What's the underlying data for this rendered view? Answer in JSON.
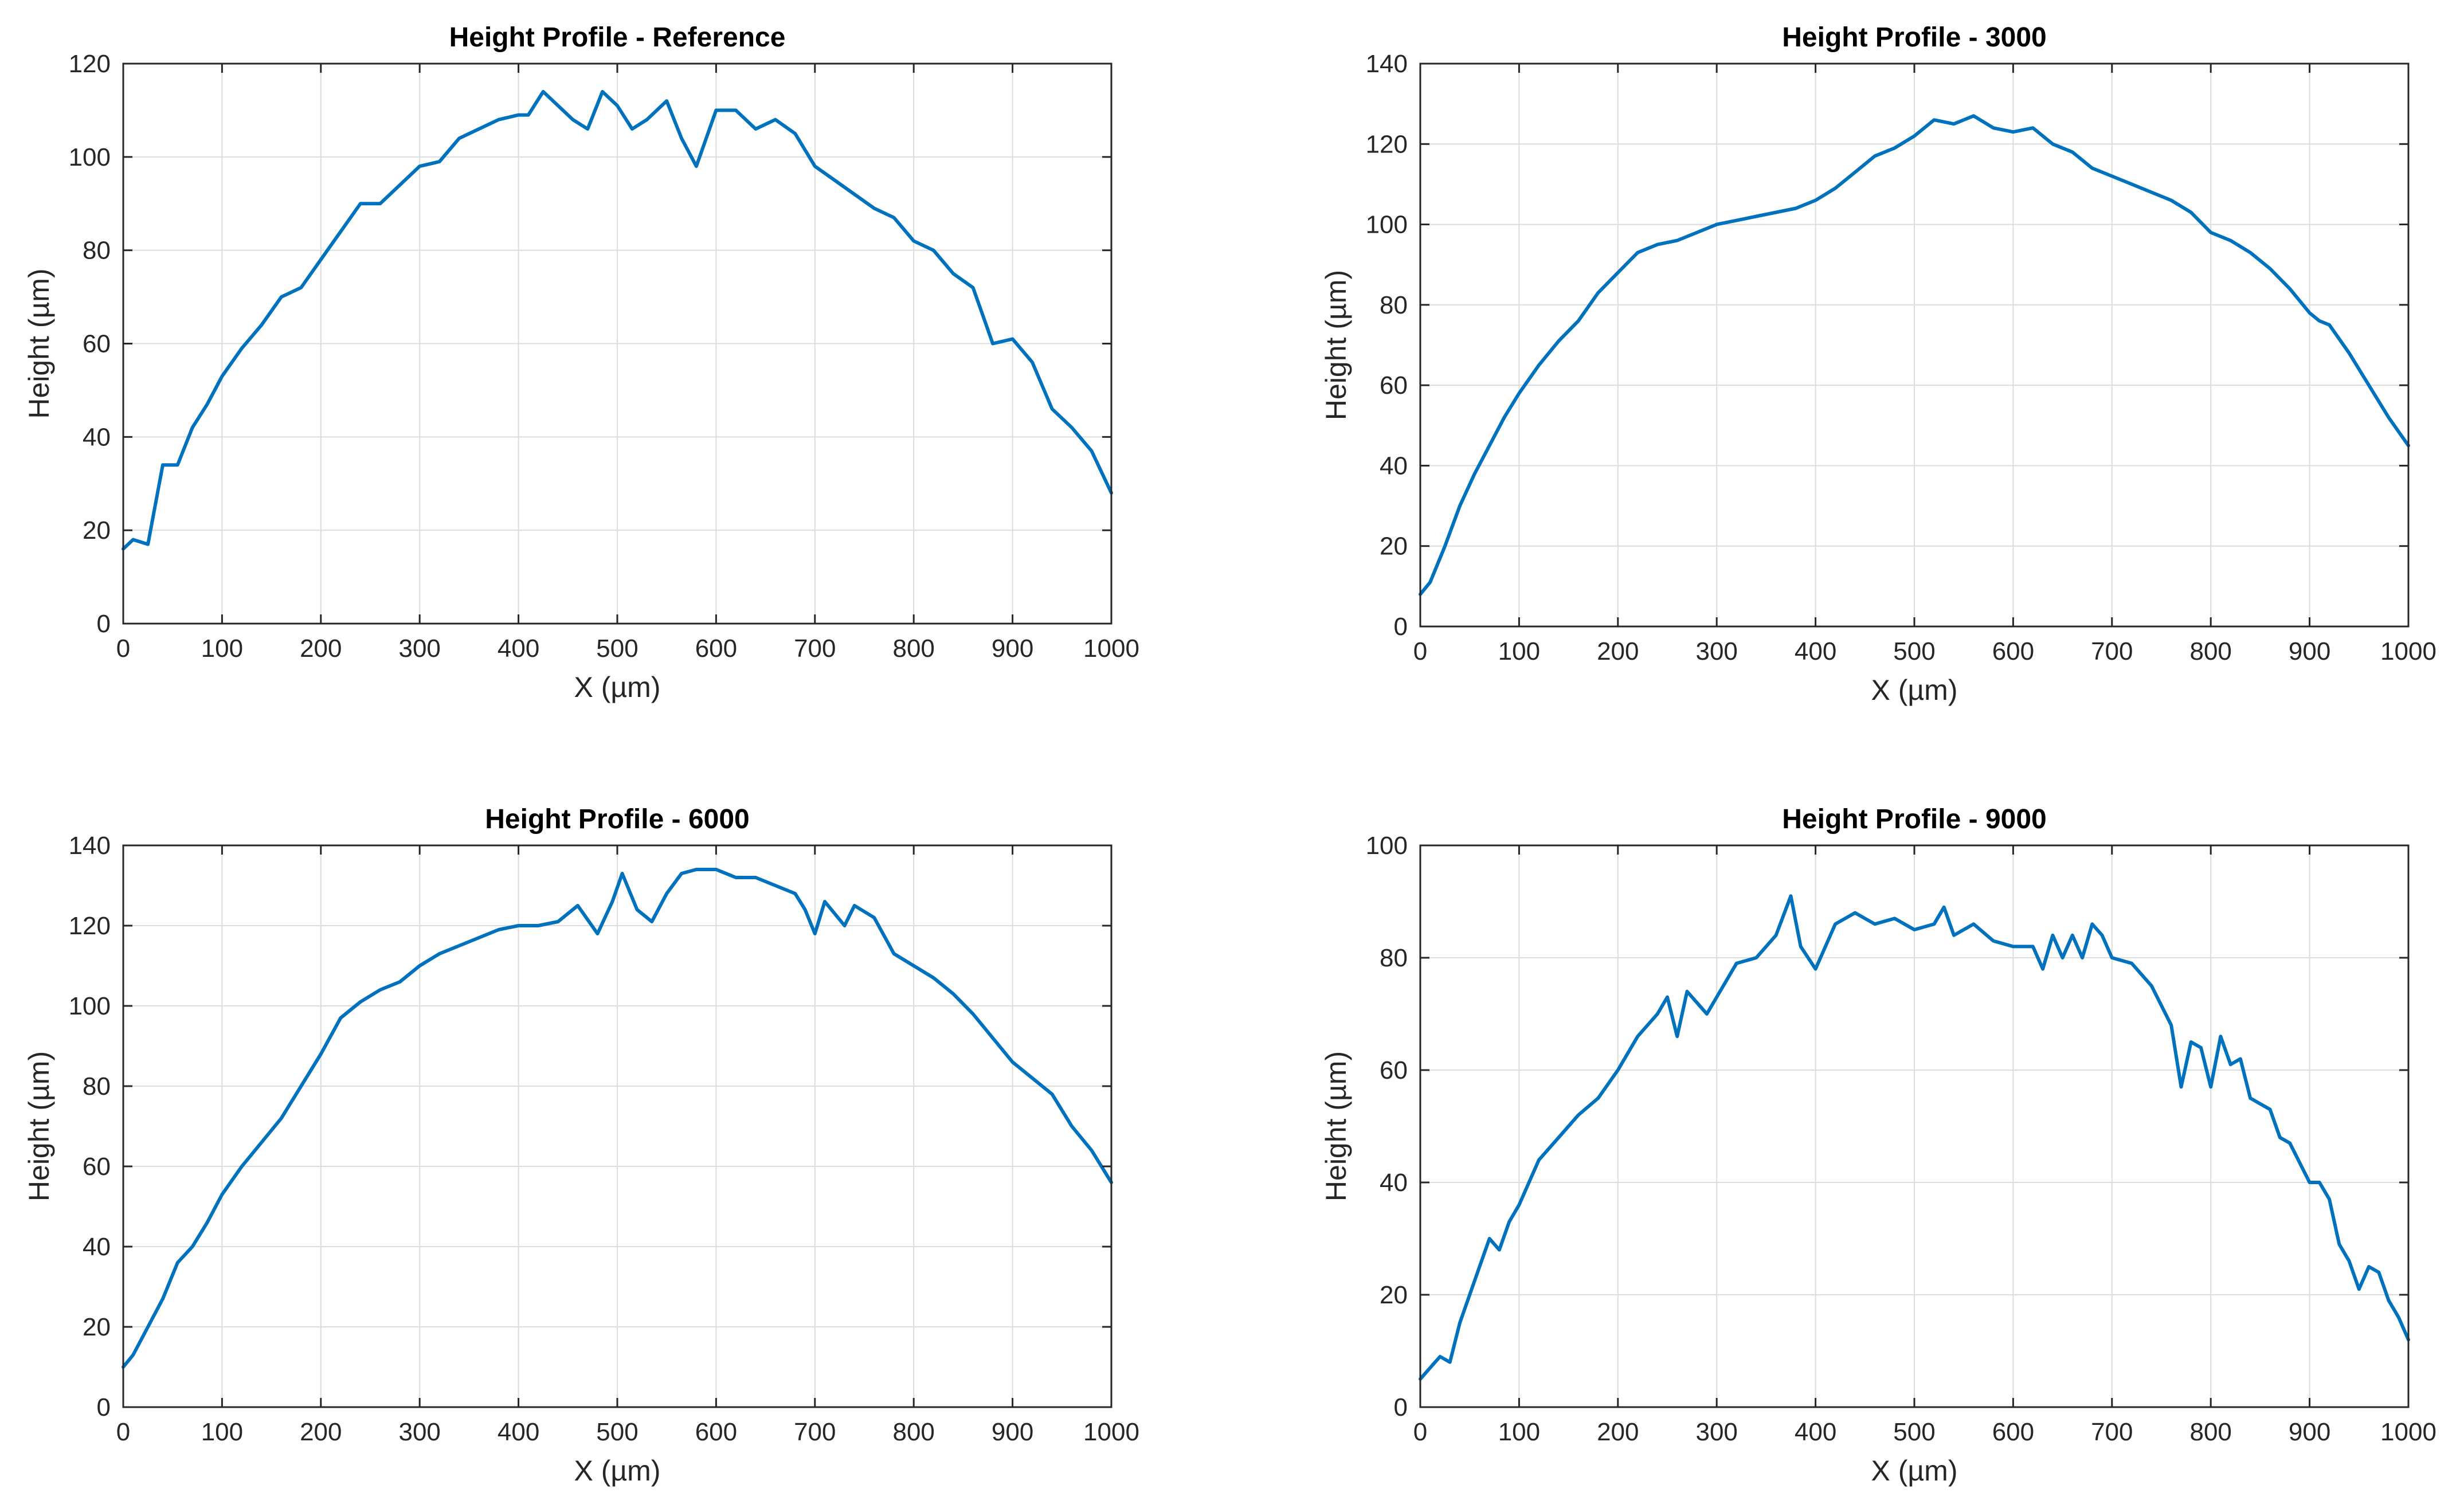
{
  "colors": {
    "line": "#0072BD",
    "grid": "#DCDCDC",
    "axis": "#262626",
    "background": "#FFFFFF"
  },
  "chart_data": [
    {
      "type": "line",
      "title": "Height Profile - Reference",
      "xlabel": "X (µm)",
      "ylabel": "Height (µm)",
      "xlim": [
        0,
        1000
      ],
      "ylim": [
        0,
        120
      ],
      "xticks": [
        0,
        100,
        200,
        300,
        400,
        500,
        600,
        700,
        800,
        900,
        1000
      ],
      "yticks": [
        0,
        20,
        40,
        60,
        80,
        100,
        120
      ],
      "xtick_labels": [
        "0",
        "100",
        "200",
        "300",
        "400",
        "500",
        "600",
        "700",
        "800",
        "900",
        "1000"
      ],
      "ytick_labels": [
        "0",
        "20",
        "40",
        "60",
        "80",
        "100",
        "120"
      ],
      "grid": true,
      "series": [
        {
          "name": "Reference",
          "x": [
            0,
            10,
            25,
            40,
            55,
            70,
            85,
            100,
            120,
            140,
            160,
            180,
            200,
            220,
            240,
            260,
            280,
            300,
            320,
            340,
            360,
            380,
            400,
            410,
            425,
            440,
            455,
            470,
            485,
            500,
            515,
            530,
            550,
            565,
            580,
            600,
            620,
            640,
            660,
            680,
            700,
            720,
            740,
            760,
            780,
            800,
            820,
            840,
            860,
            870,
            880,
            900,
            920,
            940,
            960,
            980,
            1000
          ],
          "y": [
            16,
            18,
            17,
            34,
            34,
            42,
            47,
            53,
            59,
            64,
            70,
            72,
            78,
            84,
            90,
            90,
            94,
            98,
            99,
            104,
            106,
            108,
            109,
            109,
            114,
            111,
            108,
            106,
            114,
            111,
            106,
            108,
            112,
            104,
            98,
            110,
            110,
            106,
            108,
            105,
            98,
            95,
            92,
            89,
            87,
            82,
            80,
            75,
            72,
            66,
            60,
            61,
            56,
            46,
            42,
            37,
            28
          ]
        }
      ]
    },
    {
      "type": "line",
      "title": "Height Profile - 3000",
      "xlabel": "X (µm)",
      "ylabel": "Height (µm)",
      "xlim": [
        0,
        1000
      ],
      "ylim": [
        0,
        140
      ],
      "xticks": [
        0,
        100,
        200,
        300,
        400,
        500,
        600,
        700,
        800,
        900,
        1000
      ],
      "yticks": [
        0,
        20,
        40,
        60,
        80,
        100,
        120,
        140
      ],
      "xtick_labels": [
        "0",
        "100",
        "200",
        "300",
        "400",
        "500",
        "600",
        "700",
        "800",
        "900",
        "1000"
      ],
      "ytick_labels": [
        "0",
        "20",
        "40",
        "60",
        "80",
        "100",
        "120",
        "140"
      ],
      "grid": true,
      "series": [
        {
          "name": "3000",
          "x": [
            0,
            10,
            25,
            40,
            55,
            70,
            85,
            100,
            120,
            140,
            160,
            180,
            200,
            220,
            240,
            260,
            280,
            300,
            320,
            340,
            360,
            380,
            400,
            420,
            440,
            460,
            480,
            500,
            520,
            540,
            560,
            580,
            600,
            620,
            640,
            660,
            680,
            700,
            720,
            740,
            760,
            780,
            800,
            820,
            840,
            860,
            880,
            900,
            910,
            920,
            940,
            960,
            980,
            1000
          ],
          "y": [
            8,
            11,
            20,
            30,
            38,
            45,
            52,
            58,
            65,
            71,
            76,
            83,
            88,
            93,
            95,
            96,
            98,
            100,
            101,
            102,
            103,
            104,
            106,
            109,
            113,
            117,
            119,
            122,
            126,
            125,
            127,
            124,
            123,
            124,
            120,
            118,
            114,
            112,
            110,
            108,
            106,
            103,
            98,
            96,
            93,
            89,
            84,
            78,
            76,
            75,
            68,
            60,
            52,
            45
          ]
        }
      ]
    },
    {
      "type": "line",
      "title": "Height Profile - 6000",
      "xlabel": "X (µm)",
      "ylabel": "Height (µm)",
      "xlim": [
        0,
        1000
      ],
      "ylim": [
        0,
        140
      ],
      "xticks": [
        0,
        100,
        200,
        300,
        400,
        500,
        600,
        700,
        800,
        900,
        1000
      ],
      "yticks": [
        0,
        20,
        40,
        60,
        80,
        100,
        120,
        140
      ],
      "xtick_labels": [
        "0",
        "100",
        "200",
        "300",
        "400",
        "500",
        "600",
        "700",
        "800",
        "900",
        "1000"
      ],
      "ytick_labels": [
        "0",
        "20",
        "40",
        "60",
        "80",
        "100",
        "120",
        "140"
      ],
      "grid": true,
      "series": [
        {
          "name": "6000",
          "x": [
            0,
            10,
            25,
            40,
            55,
            70,
            85,
            100,
            120,
            140,
            160,
            180,
            200,
            220,
            240,
            260,
            280,
            300,
            320,
            340,
            360,
            380,
            400,
            420,
            440,
            460,
            480,
            495,
            505,
            520,
            535,
            550,
            565,
            580,
            600,
            620,
            640,
            660,
            680,
            690,
            700,
            710,
            720,
            730,
            740,
            760,
            780,
            800,
            820,
            840,
            860,
            880,
            900,
            920,
            940,
            960,
            980,
            1000
          ],
          "y": [
            10,
            13,
            20,
            27,
            36,
            40,
            46,
            53,
            60,
            66,
            72,
            80,
            88,
            97,
            101,
            104,
            106,
            110,
            113,
            115,
            117,
            119,
            120,
            120,
            121,
            125,
            118,
            126,
            133,
            124,
            121,
            128,
            133,
            134,
            134,
            132,
            132,
            130,
            128,
            124,
            118,
            126,
            123,
            120,
            125,
            122,
            113,
            110,
            107,
            103,
            98,
            92,
            86,
            82,
            78,
            70,
            64,
            56
          ]
        }
      ]
    },
    {
      "type": "line",
      "title": "Height Profile - 9000",
      "xlabel": "X (µm)",
      "ylabel": "Height (µm)",
      "xlim": [
        0,
        1000
      ],
      "ylim": [
        0,
        100
      ],
      "xticks": [
        0,
        100,
        200,
        300,
        400,
        500,
        600,
        700,
        800,
        900,
        1000
      ],
      "yticks": [
        0,
        20,
        40,
        60,
        80,
        100
      ],
      "xtick_labels": [
        "0",
        "100",
        "200",
        "300",
        "400",
        "500",
        "600",
        "700",
        "800",
        "900",
        "1000"
      ],
      "ytick_labels": [
        "0",
        "20",
        "40",
        "60",
        "80",
        "100"
      ],
      "grid": true,
      "series": [
        {
          "name": "9000",
          "x": [
            0,
            10,
            20,
            30,
            40,
            50,
            60,
            70,
            80,
            90,
            100,
            120,
            140,
            160,
            180,
            200,
            220,
            240,
            250,
            260,
            270,
            280,
            290,
            300,
            320,
            340,
            360,
            375,
            385,
            400,
            420,
            440,
            460,
            480,
            500,
            520,
            530,
            540,
            560,
            580,
            600,
            620,
            630,
            640,
            650,
            660,
            670,
            680,
            690,
            700,
            720,
            740,
            760,
            770,
            780,
            790,
            800,
            810,
            820,
            830,
            840,
            860,
            870,
            880,
            900,
            910,
            920,
            930,
            940,
            950,
            960,
            970,
            980,
            990,
            1000
          ],
          "y": [
            5,
            7,
            9,
            8,
            15,
            20,
            25,
            30,
            28,
            33,
            36,
            44,
            48,
            52,
            55,
            60,
            66,
            70,
            73,
            66,
            74,
            72,
            70,
            73,
            79,
            80,
            84,
            91,
            82,
            78,
            86,
            88,
            86,
            87,
            85,
            86,
            89,
            84,
            86,
            83,
            82,
            82,
            78,
            84,
            80,
            84,
            80,
            86,
            84,
            80,
            79,
            75,
            68,
            57,
            65,
            64,
            57,
            66,
            61,
            62,
            55,
            53,
            48,
            47,
            40,
            40,
            37,
            29,
            26,
            21,
            25,
            24,
            19,
            16,
            12
          ]
        }
      ]
    }
  ]
}
